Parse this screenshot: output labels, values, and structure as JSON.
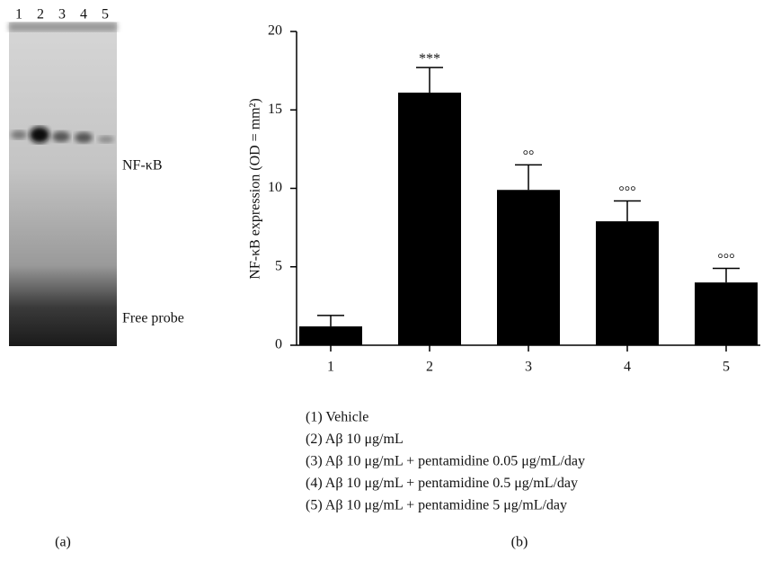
{
  "gel": {
    "lane_labels": [
      "1",
      "2",
      "3",
      "4",
      "5"
    ],
    "band_labels": [
      "NF-κB",
      "Free probe"
    ],
    "panel_label": "(a)"
  },
  "chart_data": {
    "type": "bar",
    "ylabel": "NF-κB expression (OD = mm²)",
    "categories": [
      "1",
      "2",
      "3",
      "4",
      "5"
    ],
    "values": [
      1.2,
      16.1,
      9.9,
      7.9,
      4.0
    ],
    "errors": [
      0.7,
      1.6,
      1.6,
      1.3,
      0.9
    ],
    "annotations": [
      null,
      "***",
      "°°",
      "°°°",
      "°°°"
    ],
    "color": "#000000",
    "ylim": [
      0,
      20
    ],
    "yticks": [
      0,
      5,
      10,
      15,
      20
    ],
    "legend_notes": [
      "(1) Vehicle",
      "(2) Aβ 10 μg/mL",
      "(3) Aβ 10 μg/mL + pentamidine 0.05 μg/mL/day",
      "(4) Aβ 10 μg/mL + pentamidine 0.5 μg/mL/day",
      "(5) Aβ 10 μg/mL + pentamidine 5 μg/mL/day"
    ],
    "panel_label": "(b)"
  }
}
